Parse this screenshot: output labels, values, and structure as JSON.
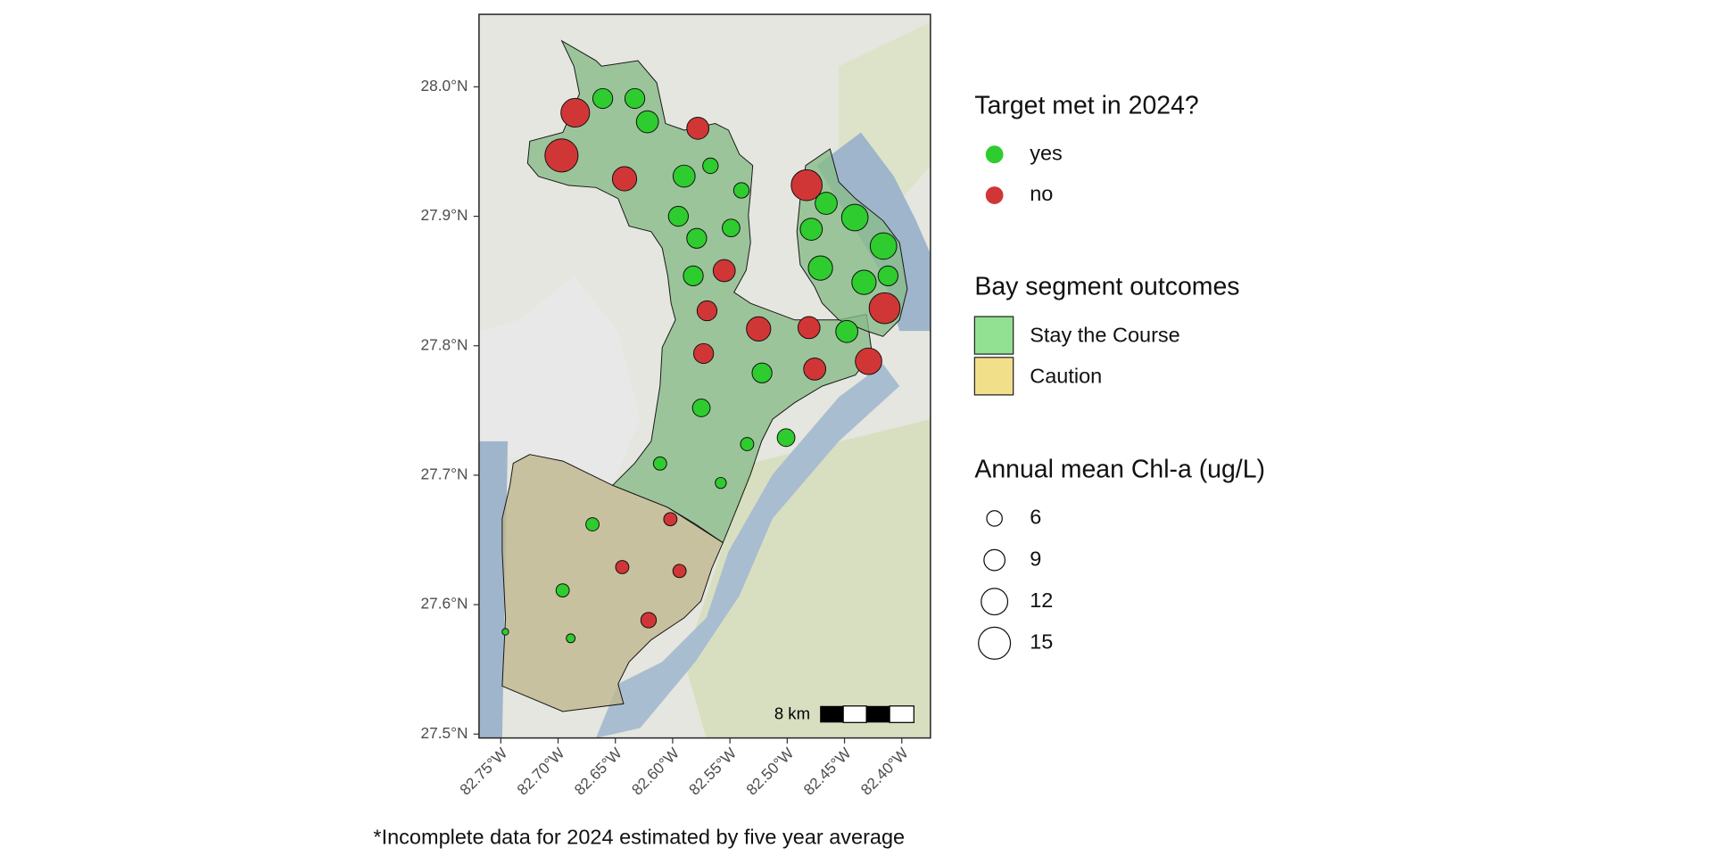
{
  "chart_data": {
    "type": "map",
    "caption": "*Incomplete data for 2024 estimated by five year average",
    "xlim": [
      -82.769,
      -82.375
    ],
    "ylim": [
      27.497,
      28.056
    ],
    "xticks": [
      {
        "value": -82.75,
        "label": "82.75°W"
      },
      {
        "value": -82.7,
        "label": "82.70°W"
      },
      {
        "value": -82.65,
        "label": "82.65°W"
      },
      {
        "value": -82.6,
        "label": "82.60°W"
      },
      {
        "value": -82.55,
        "label": "82.55°W"
      },
      {
        "value": -82.5,
        "label": "82.50°W"
      },
      {
        "value": -82.45,
        "label": "82.45°W"
      },
      {
        "value": -82.4,
        "label": "82.40°W"
      }
    ],
    "yticks": [
      {
        "value": 27.5,
        "label": "27.5°N"
      },
      {
        "value": 27.6,
        "label": "27.6°N"
      },
      {
        "value": 27.7,
        "label": "27.7°N"
      },
      {
        "value": 27.8,
        "label": "27.8°N"
      },
      {
        "value": 27.9,
        "label": "27.9°N"
      },
      {
        "value": 28.0,
        "label": "28.0°N"
      }
    ],
    "color_legend_title": "Target met in 2024?",
    "series": [
      {
        "name": "yes",
        "color": "#2ecc2e",
        "lon": [
          -82.661,
          -82.633,
          -82.622,
          -82.59,
          -82.567,
          -82.54,
          -82.466,
          -82.595,
          -82.441,
          -82.479,
          -82.549,
          -82.579,
          -82.416,
          -82.471,
          -82.582,
          -82.412,
          -82.433,
          -82.448,
          -82.522,
          -82.575,
          -82.535,
          -82.501,
          -82.611,
          -82.558,
          -82.67,
          -82.696,
          -82.689,
          -82.746
        ],
        "lat": [
          27.991,
          27.991,
          27.973,
          27.931,
          27.939,
          27.92,
          27.91,
          27.9,
          27.899,
          27.89,
          27.891,
          27.883,
          27.877,
          27.86,
          27.854,
          27.854,
          27.849,
          27.811,
          27.779,
          27.752,
          27.724,
          27.729,
          27.709,
          27.694,
          27.662,
          27.611,
          27.574,
          27.579
        ],
        "chl": [
          8.4,
          8.4,
          9.6,
          9.6,
          6.0,
          6.0,
          9.6,
          8.4,
          12.0,
          9.6,
          7.2,
          8.4,
          12.0,
          10.8,
          8.4,
          8.4,
          10.8,
          9.6,
          8.4,
          7.2,
          4.8,
          7.2,
          4.8,
          3.6,
          4.8,
          4.8,
          2.4,
          1.2
        ]
      },
      {
        "name": "no",
        "color": "#d13636",
        "lon": [
          -82.685,
          -82.578,
          -82.697,
          -82.642,
          -82.483,
          -82.555,
          -82.57,
          -82.415,
          -82.525,
          -82.481,
          -82.429,
          -82.573,
          -82.476,
          -82.602,
          -82.644,
          -82.594,
          -82.621
        ],
        "lat": [
          27.98,
          27.968,
          27.947,
          27.929,
          27.924,
          27.858,
          27.827,
          27.829,
          27.813,
          27.814,
          27.788,
          27.794,
          27.782,
          27.666,
          27.629,
          27.626,
          27.588
        ],
        "chl": [
          13.2,
          9.6,
          15.6,
          10.8,
          14.4,
          9.6,
          8.4,
          14.4,
          10.8,
          9.6,
          12.0,
          8.4,
          9.6,
          4.8,
          4.8,
          4.8,
          6.0
        ]
      }
    ],
    "segment_legend_title": "Bay segment outcomes",
    "segments": [
      {
        "name": "Stay the Course",
        "color": "#92e192"
      },
      {
        "name": "Caution",
        "color": "#f2df8a"
      }
    ],
    "size_legend_title": "Annual mean Chl-a (ug/L)",
    "size_breaks": [
      6,
      9,
      12,
      15
    ],
    "scale_bar_label": "8 km"
  }
}
